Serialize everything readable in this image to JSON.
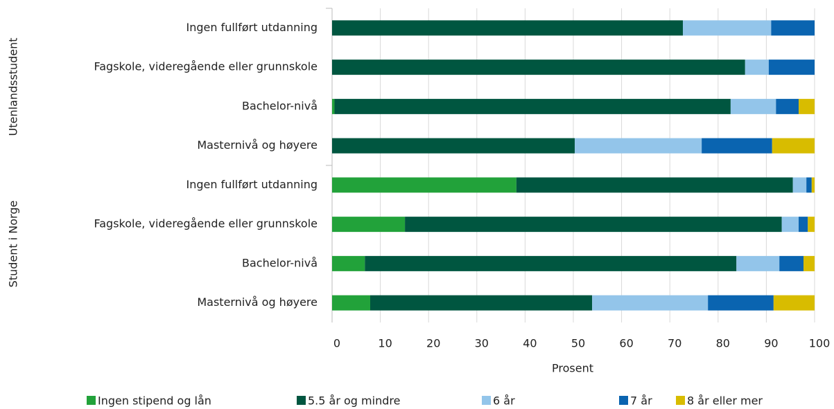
{
  "chart_data": {
    "type": "stacked-bar-horizontal",
    "x_label": "Prosent",
    "groups": [
      "Utenlandsstudent",
      "Student i Norge"
    ],
    "categories": [
      "Ingen fullført utdanning",
      "Fagskole, videregående eller grunnskole",
      "Bachelor-nivå",
      "Masternivå og høyere",
      "Ingen fullført utdanning",
      "Fagskole, videregående eller grunnskole",
      "Bachelor-nivå",
      "Masternivå og høyere"
    ],
    "series": [
      {
        "name": "Ingen stipend og lån",
        "color": "#22a23a",
        "values": [
          0,
          0,
          0.5,
          0,
          38.2,
          15.1,
          6.8,
          7.9
        ]
      },
      {
        "name": "5.5 år og mindre",
        "color": "#005640",
        "values": [
          72.7,
          85.6,
          82.1,
          50.3,
          57.3,
          78.1,
          77.0,
          46.0
        ]
      },
      {
        "name": "6 år",
        "color": "#93c5ea",
        "values": [
          18.3,
          4.9,
          9.4,
          26.3,
          2.8,
          3.5,
          8.9,
          24.0
        ]
      },
      {
        "name": "7 år",
        "color": "#0a64b0",
        "values": [
          9.0,
          9.5,
          4.7,
          14.6,
          1.1,
          1.9,
          5.0,
          13.6
        ]
      },
      {
        "name": "8 år eller mer",
        "color": "#d8bc00",
        "values": [
          0,
          0,
          3.3,
          8.8,
          0.6,
          1.4,
          2.3,
          8.5
        ]
      }
    ],
    "xlim": [
      0,
      100
    ],
    "xticks": [
      0,
      10,
      20,
      30,
      40,
      50,
      60,
      70,
      80,
      90,
      100
    ],
    "grid": true,
    "legend": "bottom"
  }
}
